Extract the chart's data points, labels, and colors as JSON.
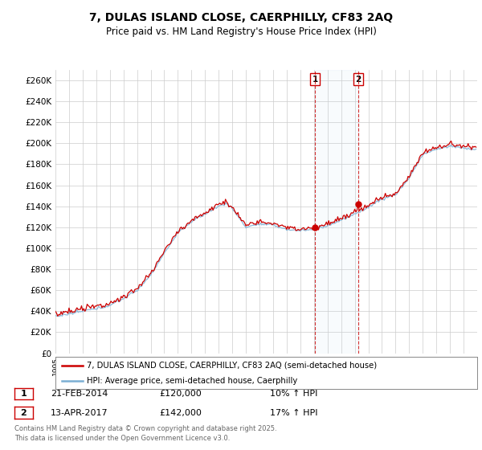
{
  "title": "7, DULAS ISLAND CLOSE, CAERPHILLY, CF83 2AQ",
  "subtitle": "Price paid vs. HM Land Registry's House Price Index (HPI)",
  "ylim": [
    0,
    270000
  ],
  "yticks": [
    0,
    20000,
    40000,
    60000,
    80000,
    100000,
    120000,
    140000,
    160000,
    180000,
    200000,
    220000,
    240000,
    260000
  ],
  "ytick_labels": [
    "£0",
    "£20K",
    "£40K",
    "£60K",
    "£80K",
    "£100K",
    "£120K",
    "£140K",
    "£160K",
    "£180K",
    "£200K",
    "£220K",
    "£240K",
    "£260K"
  ],
  "bg_color": "#ffffff",
  "plot_bg_color": "#ffffff",
  "grid_color": "#cccccc",
  "red_line_color": "#cc0000",
  "blue_line_color": "#7bafd4",
  "marker1_price": 120000,
  "marker1_date_str": "21-FEB-2014",
  "marker1_pct": "10% ↑ HPI",
  "marker2_price": 142000,
  "marker2_date_str": "13-APR-2017",
  "marker2_pct": "17% ↑ HPI",
  "legend1": "7, DULAS ISLAND CLOSE, CAERPHILLY, CF83 2AQ (semi-detached house)",
  "legend2": "HPI: Average price, semi-detached house, Caerphilly",
  "footer": "Contains HM Land Registry data © Crown copyright and database right 2025.\nThis data is licensed under the Open Government Licence v3.0."
}
